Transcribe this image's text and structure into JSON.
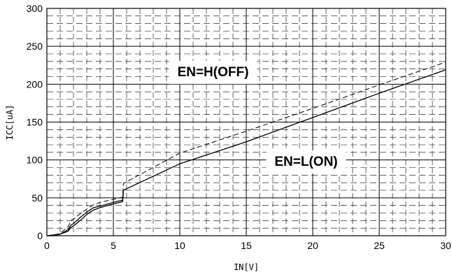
{
  "chart_data": {
    "type": "line",
    "title": "",
    "xlabel": "IN[V]",
    "ylabel": "ICC[uA]",
    "xlim": [
      0,
      30
    ],
    "ylim": [
      0,
      300
    ],
    "xticks": [
      0,
      5,
      10,
      15,
      20,
      25,
      30
    ],
    "yticks": [
      0,
      50,
      100,
      150,
      200,
      250,
      300
    ],
    "grid": true,
    "legend": "none",
    "annotations": [
      {
        "text": "EN=H(OFF)",
        "x": 12.5,
        "y": 215
      },
      {
        "text": "EN=L(ON)",
        "x": 19.5,
        "y": 97
      }
    ],
    "series": [
      {
        "style": "dashed",
        "x": [
          0,
          0.5,
          1,
          1.6,
          1.8,
          2.0,
          2.5,
          3.0,
          3.5,
          4.0,
          5.0,
          5.7,
          5.75,
          10,
          15,
          20,
          25,
          30
        ],
        "y": [
          0,
          1,
          3,
          12,
          20,
          22,
          29,
          35,
          41,
          44,
          48,
          51,
          69,
          109,
          138,
          168,
          199,
          229
        ]
      },
      {
        "style": "solid",
        "x": [
          0,
          0.5,
          1,
          1.6,
          1.8,
          2.0,
          2.5,
          3.0,
          3.5,
          4.0,
          5.0,
          5.7,
          5.75,
          10,
          15,
          20,
          25,
          30
        ],
        "y": [
          0,
          1,
          2,
          8,
          14,
          16,
          24,
          31,
          37,
          39,
          44,
          47,
          60,
          95,
          124,
          156,
          188,
          219
        ]
      },
      {
        "style": "solid",
        "x": [
          0,
          0.5,
          1,
          1.6,
          1.8,
          2.0,
          2.5,
          3.0,
          3.5,
          4.0,
          5.0,
          5.7,
          5.75
        ],
        "y": [
          0,
          0,
          2,
          6,
          11,
          13,
          20,
          28,
          34,
          37,
          42,
          45,
          57
        ]
      }
    ]
  }
}
